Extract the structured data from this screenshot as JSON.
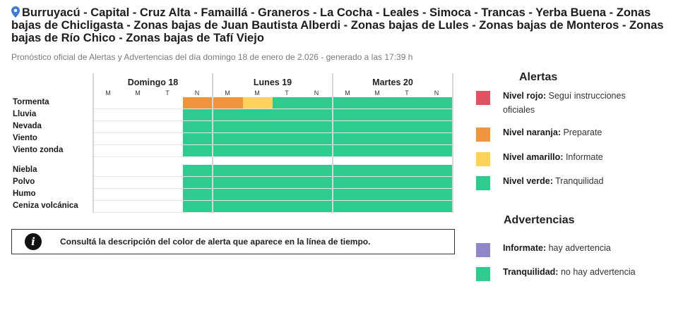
{
  "header": {
    "title": "Burruyacú - Capital - Cruz Alta - Famaillá - Graneros - La Cocha - Leales - Simoca - Trancas - Yerba Buena - Zonas bajas de Chicligasta - Zonas bajas de Juan Bautista Alberdi - Zonas bajas de Lules - Zonas bajas de Monteros - Zonas bajas de Río Chico - Zonas bajas de Tafí Viejo",
    "icon": "location-pin-icon",
    "subtitle": "Pronóstico oficial de Alertas y Advertencias del día domingo 18 de enero de 2.026 - generado a las 17:39 h"
  },
  "timeline": {
    "days": [
      "Domingo 18",
      "Lunes 19",
      "Martes 20"
    ],
    "slots": [
      "M",
      "M",
      "T",
      "N"
    ],
    "rows": [
      {
        "label": "Tormenta",
        "levels": [
          null,
          null,
          null,
          "naranja",
          "naranja",
          "amarillo",
          "verde",
          "verde",
          "verde",
          "verde",
          "verde",
          "verde"
        ]
      },
      {
        "label": "Lluvia",
        "levels": [
          null,
          null,
          null,
          "verde",
          "verde",
          "verde",
          "verde",
          "verde",
          "verde",
          "verde",
          "verde",
          "verde"
        ]
      },
      {
        "label": "Nevada",
        "levels": [
          null,
          null,
          null,
          "verde",
          "verde",
          "verde",
          "verde",
          "verde",
          "verde",
          "verde",
          "verde",
          "verde"
        ]
      },
      {
        "label": "Viento",
        "levels": [
          null,
          null,
          null,
          "verde",
          "verde",
          "verde",
          "verde",
          "verde",
          "verde",
          "verde",
          "verde",
          "verde"
        ]
      },
      {
        "label": "Viento zonda",
        "levels": [
          null,
          null,
          null,
          "verde",
          "verde",
          "verde",
          "verde",
          "verde",
          "verde",
          "verde",
          "verde",
          "verde"
        ]
      },
      {
        "label": "Niebla",
        "levels": [
          null,
          null,
          null,
          "verde",
          "verde",
          "verde",
          "verde",
          "verde",
          "verde",
          "verde",
          "verde",
          "verde"
        ]
      },
      {
        "label": "Polvo",
        "levels": [
          null,
          null,
          null,
          "verde",
          "verde",
          "verde",
          "verde",
          "verde",
          "verde",
          "verde",
          "verde",
          "verde"
        ]
      },
      {
        "label": "Humo",
        "levels": [
          null,
          null,
          null,
          "verde",
          "verde",
          "verde",
          "verde",
          "verde",
          "verde",
          "verde",
          "verde",
          "verde"
        ]
      },
      {
        "label": "Ceniza volcánica",
        "levels": [
          null,
          null,
          null,
          "verde",
          "verde",
          "verde",
          "verde",
          "verde",
          "verde",
          "verde",
          "verde",
          "verde"
        ]
      }
    ]
  },
  "info": {
    "icon": "info-icon",
    "icon_glyph": "i",
    "text": "Consultá la descripción del color de alerta que aparece en la línea de tiempo."
  },
  "legend": {
    "alertas_title": "Alertas",
    "alertas": [
      {
        "level": "Nivel rojo:",
        "desc": "Seguí instrucciones oficiales",
        "color": "#e15361"
      },
      {
        "level": "Nivel naranja:",
        "desc": "Preparate",
        "color": "#f0953e"
      },
      {
        "level": "Nivel amarillo:",
        "desc": "Informate",
        "color": "#fdd459"
      },
      {
        "level": "Nivel verde:",
        "desc": "Tranquilidad",
        "color": "#2ecc8e"
      }
    ],
    "advertencias_title": "Advertencias",
    "advertencias": [
      {
        "level": "Informate:",
        "desc": "hay advertencia",
        "color": "#8e88c8"
      },
      {
        "level": "Tranquilidad:",
        "desc": "no hay advertencia",
        "color": "#2ecc8e"
      }
    ]
  },
  "colors": {
    "verde": "#2ecc8e",
    "naranja": "#f0953e",
    "amarillo": "#fdd459",
    "rojo": "#e15361",
    "violeta": "#8e88c8"
  }
}
